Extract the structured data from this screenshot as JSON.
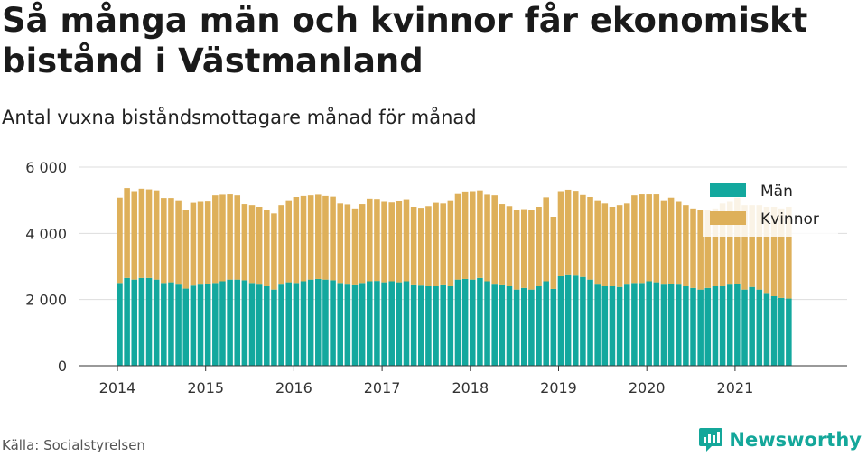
{
  "title": "Så många män och kvinnor får ekonomiskt bistånd i Västmanland",
  "subtitle": "Antal vuxna biståndsmottagare månad för månad",
  "source": "Källa: Socialstyrelsen",
  "brand": "Newsworthy",
  "colors": {
    "men": "#13a89e",
    "women": "#deb05a",
    "grid": "#dddddd",
    "brand": "#14a79a"
  },
  "chart_data": {
    "type": "bar",
    "stacked": true,
    "ylim": [
      0,
      6000
    ],
    "yticks": [
      0,
      2000,
      4000,
      6000
    ],
    "ytick_labels": [
      "0",
      "2 000",
      "4 000",
      "6 000"
    ],
    "xticks": [
      2014,
      2015,
      2016,
      2017,
      2018,
      2019,
      2020,
      2021
    ],
    "x_start": "2014-01",
    "legend_position": "top-right",
    "series": [
      {
        "name": "Män",
        "values": [
          2500,
          2650,
          2600,
          2650,
          2650,
          2600,
          2500,
          2520,
          2450,
          2330,
          2420,
          2450,
          2480,
          2500,
          2550,
          2600,
          2600,
          2580,
          2500,
          2450,
          2400,
          2300,
          2450,
          2520,
          2500,
          2550,
          2600,
          2620,
          2600,
          2580,
          2500,
          2450,
          2430,
          2500,
          2550,
          2560,
          2520,
          2550,
          2520,
          2550,
          2430,
          2420,
          2400,
          2400,
          2430,
          2400,
          2600,
          2620,
          2600,
          2650,
          2550,
          2450,
          2430,
          2400,
          2300,
          2350,
          2300,
          2400,
          2550,
          2320,
          2700,
          2760,
          2720,
          2680,
          2600,
          2450,
          2400,
          2400,
          2380,
          2450,
          2500,
          2500,
          2550,
          2520,
          2450,
          2480,
          2450,
          2400,
          2350,
          2300,
          2350,
          2400,
          2400,
          2450,
          2480,
          2300,
          2380,
          2300,
          2200,
          2100,
          2050,
          2030
        ]
      },
      {
        "name": "Kvinnor",
        "values": [
          2580,
          2720,
          2650,
          2700,
          2680,
          2700,
          2570,
          2550,
          2550,
          2370,
          2500,
          2500,
          2480,
          2650,
          2620,
          2580,
          2550,
          2300,
          2350,
          2350,
          2300,
          2300,
          2400,
          2480,
          2600,
          2580,
          2550,
          2550,
          2530,
          2530,
          2400,
          2420,
          2320,
          2380,
          2500,
          2480,
          2430,
          2380,
          2470,
          2480,
          2370,
          2350,
          2420,
          2520,
          2470,
          2600,
          2590,
          2620,
          2650,
          2650,
          2620,
          2700,
          2450,
          2420,
          2400,
          2380,
          2400,
          2400,
          2540,
          2180,
          2550,
          2560,
          2540,
          2480,
          2500,
          2550,
          2500,
          2400,
          2470,
          2450,
          2650,
          2680,
          2630,
          2660,
          2550,
          2600,
          2500,
          2450,
          2400,
          2400,
          2350,
          2350,
          2500,
          2500,
          2600,
          2550,
          2470,
          2550,
          2600,
          2700,
          2700,
          2770
        ]
      }
    ]
  }
}
